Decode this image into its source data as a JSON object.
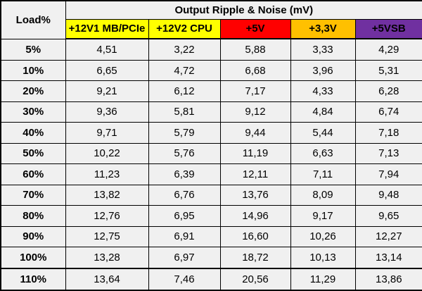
{
  "table": {
    "corner_header": "Load%",
    "group_header": "Output Ripple & Noise (mV)",
    "columns": [
      {
        "id": "12v1-mb-pcie",
        "label": "+12V1 MB/PCIe",
        "color": "#FFFF00"
      },
      {
        "id": "12v2-cpu",
        "label": "+12V2 CPU",
        "color": "#FFFF00"
      },
      {
        "id": "5v",
        "label": "+5V",
        "color": "#FF0000"
      },
      {
        "id": "3-3v",
        "label": "+3,3V",
        "color": "#FFC000"
      },
      {
        "id": "5vsb",
        "label": "+5VSB",
        "color": "#7030A0"
      }
    ],
    "rows": [
      {
        "load": "5%",
        "values": [
          "4,51",
          "3,22",
          "5,88",
          "3,33",
          "4,29"
        ]
      },
      {
        "load": "10%",
        "values": [
          "6,65",
          "4,72",
          "6,68",
          "3,96",
          "5,31"
        ]
      },
      {
        "load": "20%",
        "values": [
          "9,21",
          "6,12",
          "7,17",
          "4,33",
          "6,28"
        ]
      },
      {
        "load": "30%",
        "values": [
          "9,36",
          "5,81",
          "9,12",
          "4,84",
          "6,74"
        ]
      },
      {
        "load": "40%",
        "values": [
          "9,71",
          "5,79",
          "9,44",
          "5,44",
          "7,18"
        ]
      },
      {
        "load": "50%",
        "values": [
          "10,22",
          "5,76",
          "11,19",
          "6,63",
          "7,13"
        ]
      },
      {
        "load": "60%",
        "values": [
          "11,23",
          "6,39",
          "12,11",
          "7,11",
          "7,94"
        ]
      },
      {
        "load": "70%",
        "values": [
          "13,82",
          "6,76",
          "13,76",
          "8,09",
          "9,48"
        ]
      },
      {
        "load": "80%",
        "values": [
          "12,76",
          "6,95",
          "14,96",
          "9,17",
          "9,65"
        ]
      },
      {
        "load": "90%",
        "values": [
          "12,75",
          "6,91",
          "16,60",
          "10,26",
          "12,27"
        ]
      },
      {
        "load": "100%",
        "values": [
          "13,28",
          "6,97",
          "18,72",
          "10,13",
          "13,14"
        ]
      },
      {
        "load": "110%",
        "values": [
          "13,64",
          "7,46",
          "20,56",
          "11,29",
          "13,86"
        ]
      }
    ]
  },
  "colors": {
    "cell_background": "#f0f0f0",
    "border": "#000000",
    "text": "#000000",
    "rail_12v": "#FFFF00",
    "rail_5v": "#FF0000",
    "rail_3_3v": "#FFC000",
    "rail_5vsb": "#7030A0"
  },
  "chart_data": {
    "type": "table",
    "title": "Output Ripple & Noise (mV)",
    "row_header": "Load%",
    "categories": [
      "5%",
      "10%",
      "20%",
      "30%",
      "40%",
      "50%",
      "60%",
      "70%",
      "80%",
      "90%",
      "100%",
      "110%"
    ],
    "series": [
      {
        "name": "+12V1 MB/PCIe",
        "values": [
          4.51,
          6.65,
          9.21,
          9.36,
          9.71,
          10.22,
          11.23,
          13.82,
          12.76,
          12.75,
          13.28,
          13.64
        ]
      },
      {
        "name": "+12V2 CPU",
        "values": [
          3.22,
          4.72,
          6.12,
          5.81,
          5.79,
          5.76,
          6.39,
          6.76,
          6.95,
          6.91,
          6.97,
          7.46
        ]
      },
      {
        "name": "+5V",
        "values": [
          5.88,
          6.68,
          7.17,
          9.12,
          9.44,
          11.19,
          12.11,
          13.76,
          14.96,
          16.6,
          18.72,
          20.56
        ]
      },
      {
        "name": "+3,3V",
        "values": [
          3.33,
          3.96,
          4.33,
          4.84,
          5.44,
          6.63,
          7.11,
          8.09,
          9.17,
          10.26,
          10.13,
          11.29
        ]
      },
      {
        "name": "+5VSB",
        "values": [
          4.29,
          5.31,
          6.28,
          6.74,
          7.18,
          7.13,
          7.94,
          9.48,
          9.65,
          12.27,
          13.14,
          13.86
        ]
      }
    ],
    "decimal_separator": ","
  }
}
